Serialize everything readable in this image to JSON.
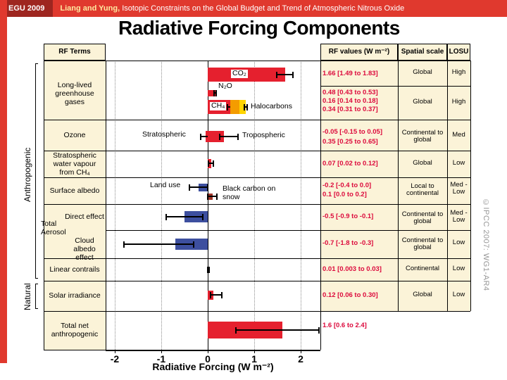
{
  "header": {
    "conference": "EGU 2009",
    "authors": "Liang and Yung,",
    "subtitle": "Isotopic Constraints on the Global Budget and Trend of Atmospheric Nitrous Oxide"
  },
  "title": "Radiative Forcing Components",
  "credit": "©IPCC  2007: WG1-AR4",
  "chart_data": {
    "type": "bar",
    "orientation": "horizontal",
    "title": "Radiative Forcing Components",
    "xlabel": "Radiative Forcing  (W m⁻²)",
    "xlim": [
      -2.2,
      2.45
    ],
    "xticks": [
      -2,
      -1,
      0,
      1,
      2
    ],
    "grid": "vertical lines at integer ticks, solid zero line",
    "columns": {
      "terms": "RF Terms",
      "values": "RF values (W m⁻²)",
      "spatial": "Spatial scale",
      "losu": "LOSU"
    },
    "side_labels": {
      "anthropogenic": "Anthropogenic",
      "natural": "Natural"
    },
    "aerosol_group_label": "Total Aerosol",
    "plot_labels": {
      "co2": "CO₂",
      "n2o": "N₂O",
      "ch4": "CH₄",
      "halocarbons": "Halocarbons",
      "stratospheric": "Stratospheric",
      "tropospheric": "Tropospheric",
      "land_use": "Land use",
      "bc_snow": "Black carbon on snow"
    },
    "colors": {
      "red_bar": "#e5202e",
      "orange_bar": "#f49c00",
      "yellow_bar": "#ffd400",
      "blue_bar": "#3d4f9f",
      "dark_red_bar": "#a03528",
      "value_text": "#dc0a3c",
      "cell_bg": "#fbf3d8",
      "banner_red": "#e0392e"
    },
    "rows": [
      {
        "id": "llghg",
        "term": "Long-lived greenhouse gases",
        "values": [
          "1.66 [1.49 to 1.83]",
          "0.48 [0.43 to 0.53]",
          "0.16 [0.14 to 0.18]",
          "0.34 [0.31 to 0.37]"
        ],
        "spatial": [
          "Global",
          "Global"
        ],
        "losu": [
          "High",
          "High"
        ]
      },
      {
        "id": "ozone",
        "term": "Ozone",
        "values": [
          "-0.05 [-0.15 to 0.05]",
          "0.35 [0.25 to 0.65]"
        ],
        "spatial": [
          "Continental to global"
        ],
        "losu": [
          "Med"
        ]
      },
      {
        "id": "strat_h2o",
        "term": "Stratospheric water vapour from CH₄",
        "values": [
          "0.07 [0.02 to 0.12]"
        ],
        "spatial": [
          "Global"
        ],
        "losu": [
          "Low"
        ]
      },
      {
        "id": "surface_albedo",
        "term": "Surface albedo",
        "values": [
          "-0.2 [-0.4 to 0.0]",
          "0.1 [0.0 to 0.2]"
        ],
        "spatial": [
          "Local to continental"
        ],
        "losu": [
          "Med - Low"
        ]
      },
      {
        "id": "aerosol_direct",
        "term": "Direct effect",
        "values": [
          "-0.5 [-0.9 to -0.1]"
        ],
        "spatial": [
          "Continental to global"
        ],
        "losu": [
          "Med - Low"
        ]
      },
      {
        "id": "cloud_albedo",
        "term": "Cloud albedo effect",
        "values": [
          "-0.7 [-1.8 to -0.3]"
        ],
        "spatial": [
          "Continental to global"
        ],
        "losu": [
          "Low"
        ]
      },
      {
        "id": "contrails",
        "term": "Linear contrails",
        "values": [
          "0.01 [0.003 to 0.03]"
        ],
        "spatial": [
          "Continental"
        ],
        "losu": [
          "Low"
        ]
      },
      {
        "id": "solar",
        "term": "Solar irradiance",
        "values": [
          "0.12 [0.06 to 0.30]"
        ],
        "spatial": [
          "Global"
        ],
        "losu": [
          "Low"
        ]
      },
      {
        "id": "total_net",
        "term": "Total net anthropogenic",
        "values": [
          "1.6 [0.6 to 2.4]"
        ],
        "spatial": [],
        "losu": []
      }
    ],
    "bars": [
      {
        "id": "co2",
        "from": 0,
        "to": 1.66,
        "err": [
          1.49,
          1.83
        ],
        "color": "red_bar"
      },
      {
        "id": "n2o",
        "from": 0,
        "to": 0.16,
        "err": [
          0.14,
          0.18
        ],
        "color": "red_bar"
      },
      {
        "id": "ch4",
        "from": 0,
        "to": 0.48,
        "err": [
          0.43,
          0.53
        ],
        "color": "red_bar"
      },
      {
        "id": "halocarbons",
        "from": 0.48,
        "to": 0.82,
        "err": [
          0.79,
          0.85
        ],
        "color": "orange_bar"
      },
      {
        "id": "o3_strat",
        "from": -0.05,
        "to": 0,
        "err": [
          -0.15,
          0.05
        ],
        "color": "red_bar"
      },
      {
        "id": "o3_trop",
        "from": 0,
        "to": 0.35,
        "err": [
          0.25,
          0.65
        ],
        "color": "red_bar"
      },
      {
        "id": "strat_h2o",
        "from": 0,
        "to": 0.07,
        "err": [
          0.02,
          0.12
        ],
        "color": "red_bar"
      },
      {
        "id": "land_use",
        "from": -0.2,
        "to": 0,
        "err": [
          -0.4,
          0.0
        ],
        "color": "blue_bar"
      },
      {
        "id": "bc_snow",
        "from": 0,
        "to": 0.1,
        "err": [
          0.0,
          0.2
        ],
        "color": "dark_red_bar"
      },
      {
        "id": "aerosol_direct",
        "from": -0.5,
        "to": 0,
        "err": [
          -0.9,
          -0.1
        ],
        "color": "blue_bar"
      },
      {
        "id": "cloud_albedo",
        "from": -0.7,
        "to": 0,
        "err": [
          -1.8,
          -0.3
        ],
        "color": "blue_bar"
      },
      {
        "id": "contrails",
        "from": 0,
        "to": 0.01,
        "err": [
          0.003,
          0.03
        ],
        "color": "red_bar"
      },
      {
        "id": "solar",
        "from": 0,
        "to": 0.12,
        "err": [
          0.06,
          0.3
        ],
        "color": "red_bar"
      },
      {
        "id": "total_net",
        "from": 0,
        "to": 1.6,
        "err": [
          0.6,
          2.4
        ],
        "color": "red_bar"
      }
    ]
  }
}
